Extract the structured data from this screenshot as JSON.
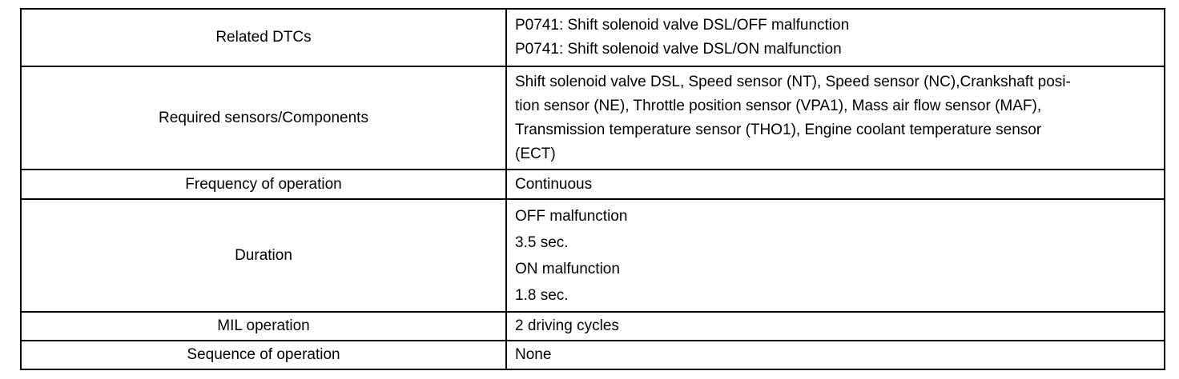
{
  "table": {
    "rows": [
      {
        "label": "Related DTCs",
        "value_lines": [
          "P0741: Shift solenoid valve DSL/OFF malfunction",
          "P0741: Shift solenoid valve DSL/ON malfunction"
        ]
      },
      {
        "label": "Required sensors/Components",
        "value_lines": [
          "Shift solenoid valve DSL, Speed sensor (NT), Speed sensor (NC),Crankshaft posi-",
          "tion sensor (NE), Throttle position sensor (VPA1), Mass air flow sensor (MAF),",
          "Transmission temperature sensor (THO1), Engine coolant temperature sensor",
          "(ECT)"
        ]
      },
      {
        "label": "Frequency of operation",
        "value_lines": [
          "Continuous"
        ]
      },
      {
        "label": "Duration",
        "value_lines": [
          "OFF malfunction",
          "3.5 sec.",
          "ON malfunction",
          "1.8 sec."
        ]
      },
      {
        "label": "MIL operation",
        "value_lines": [
          "2 driving cycles"
        ]
      },
      {
        "label": "Sequence of operation",
        "value_lines": [
          "None"
        ]
      }
    ]
  }
}
